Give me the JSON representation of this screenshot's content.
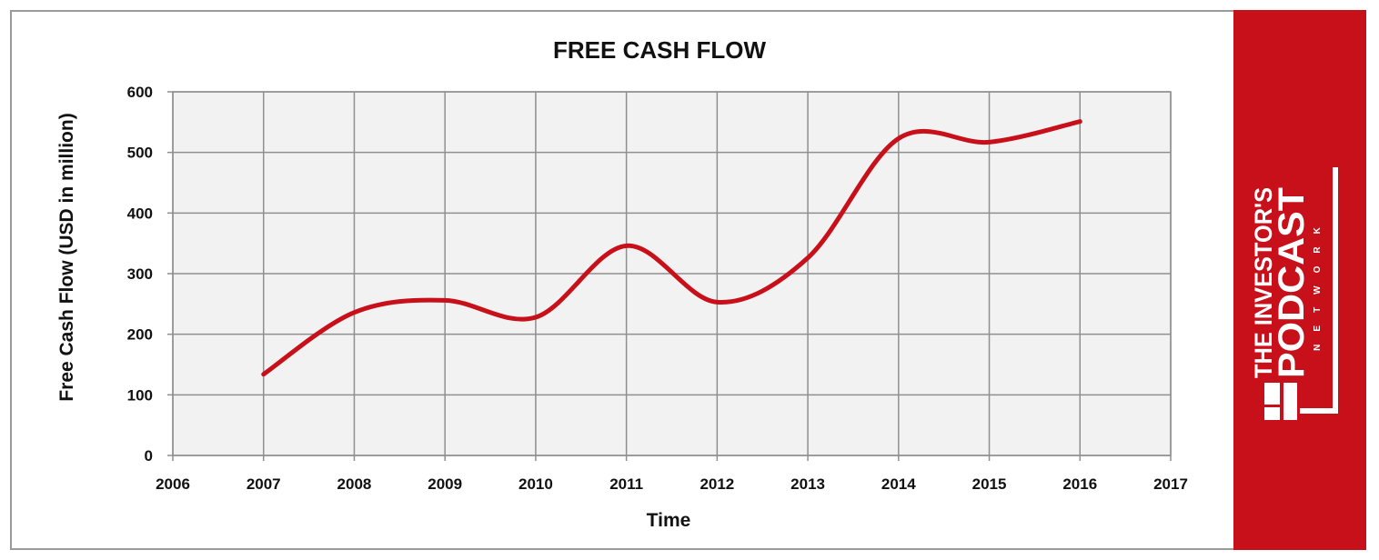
{
  "chart_data": {
    "type": "line",
    "title": "FREE CASH FLOW",
    "xlabel": "Time",
    "ylabel": "Free Cash Flow (USD in million)",
    "xlim": [
      2006,
      2017
    ],
    "ylim": [
      0,
      600
    ],
    "x_ticks": [
      2006,
      2007,
      2008,
      2009,
      2010,
      2011,
      2012,
      2013,
      2014,
      2015,
      2016,
      2017
    ],
    "y_ticks": [
      0,
      100,
      200,
      300,
      400,
      500,
      600
    ],
    "grid": true,
    "smooth": true,
    "series": [
      {
        "color": "#c8101a",
        "x": [
          2007,
          2008,
          2009,
          2010,
          2011,
          2012,
          2013,
          2014,
          2015,
          2016
        ],
        "y": [
          134,
          236,
          256,
          228,
          346,
          253,
          326,
          523,
          517,
          551
        ]
      }
    ]
  },
  "colors": {
    "plot_background": "#f2f2f2",
    "grid": "#8f8f8f",
    "line": "#c8101a",
    "brand_panel": "#c8101a"
  },
  "brand": {
    "line1": "THE INVESTOR'S",
    "line2": "PODCAST",
    "line3": "NETWORK"
  }
}
